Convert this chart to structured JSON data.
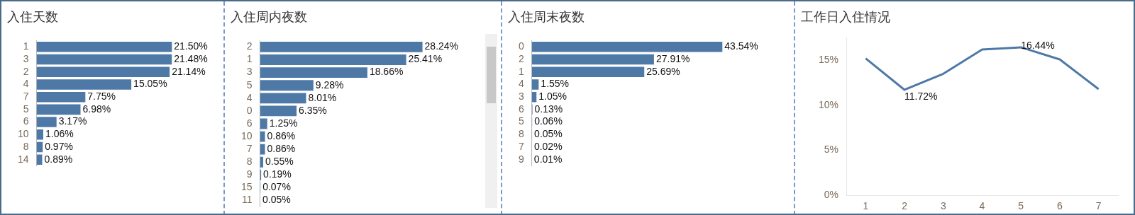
{
  "chart_data": [
    {
      "type": "bar",
      "orientation": "horizontal",
      "title": "入住天数",
      "categories": [
        "1",
        "3",
        "2",
        "4",
        "7",
        "5",
        "6",
        "10",
        "8",
        "14"
      ],
      "color": "#4e79a7",
      "values": [
        21.5,
        21.48,
        21.14,
        15.05,
        7.75,
        6.98,
        3.17,
        1.06,
        0.97,
        0.89
      ],
      "value_labels": [
        "21.50%",
        "21.48%",
        "21.14%",
        "15.05%",
        "7.75%",
        "6.98%",
        "3.17%",
        "1.06%",
        "0.97%",
        "0.89%"
      ],
      "tick_labels": "y",
      "legend": false,
      "grid": false
    },
    {
      "type": "bar",
      "orientation": "horizontal",
      "title": "入住周内夜数",
      "categories": [
        "2",
        "1",
        "3",
        "5",
        "4",
        "0",
        "6",
        "10",
        "7",
        "8",
        "9",
        "15",
        "11"
      ],
      "color": "#4e79a7",
      "values": [
        28.24,
        25.41,
        18.66,
        9.28,
        8.01,
        6.35,
        1.25,
        0.86,
        0.86,
        0.55,
        0.19,
        0.07,
        0.05
      ],
      "value_labels": [
        "28.24%",
        "25.41%",
        "18.66%",
        "9.28%",
        "8.01%",
        "6.35%",
        "1.25%",
        "0.86%",
        "0.86%",
        "0.55%",
        "0.19%",
        "0.07%",
        "0.05%"
      ],
      "tick_labels": "y",
      "legend": false,
      "grid": false
    },
    {
      "type": "bar",
      "orientation": "horizontal",
      "title": "入住周末夜数",
      "categories": [
        "0",
        "2",
        "1",
        "4",
        "3",
        "6",
        "5",
        "8",
        "7",
        "9"
      ],
      "color": "#4e79a7",
      "values": [
        43.54,
        27.91,
        25.69,
        1.55,
        1.05,
        0.13,
        0.06,
        0.05,
        0.02,
        0.01
      ],
      "value_labels": [
        "43.54%",
        "27.91%",
        "25.69%",
        "1.55%",
        "1.05%",
        "0.13%",
        "0.06%",
        "0.05%",
        "0.02%",
        "0.01%"
      ],
      "tick_labels": "y",
      "legend": false,
      "grid": false
    },
    {
      "type": "line",
      "title": "工作日入住情况",
      "categories": [
        "1",
        "2",
        "3",
        "4",
        "5",
        "6",
        "7"
      ],
      "color": "#4e79a7",
      "values": [
        15.2,
        11.72,
        13.5,
        16.2,
        16.44,
        15.1,
        11.8
      ],
      "value_labels": [
        null,
        "11.72%",
        null,
        null,
        "16.44%",
        null,
        null
      ],
      "ylim": [
        0,
        17.5
      ],
      "yticks": [
        {
          "value": 0,
          "label": "0%"
        },
        {
          "value": 5,
          "label": "5%"
        },
        {
          "value": 10,
          "label": "10%"
        },
        {
          "value": 15,
          "label": "15%"
        }
      ],
      "marker": "none",
      "line_style": "solid",
      "legend": false,
      "grid": false
    }
  ]
}
